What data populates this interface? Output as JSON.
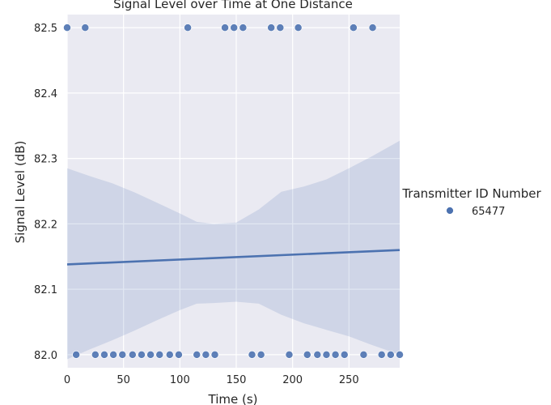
{
  "chart_data": {
    "type": "scatter",
    "title": "Signal Level over Time at One Distance",
    "xlabel": "Time (s)",
    "ylabel": "Signal Level (dB)",
    "xlim": [
      0,
      295
    ],
    "ylim": [
      81.98,
      82.52
    ],
    "xticks": [
      0,
      50,
      100,
      150,
      200,
      250
    ],
    "yticks": [
      82.0,
      82.1,
      82.2,
      82.3,
      82.4,
      82.5
    ],
    "xtick_labels": [
      "0",
      "50",
      "100",
      "150",
      "200",
      "250"
    ],
    "ytick_labels": [
      "82.0",
      "82.1",
      "82.2",
      "82.3",
      "82.4",
      "82.5"
    ],
    "grid": true,
    "legend": {
      "title": "Transmitter ID Number",
      "placement": "right",
      "entries": [
        "65477"
      ]
    },
    "series": [
      {
        "name": "65477",
        "color": "#4c72b0",
        "points": [
          [
            0,
            82.5
          ],
          [
            16,
            82.5
          ],
          [
            107,
            82.5
          ],
          [
            140,
            82.5
          ],
          [
            148,
            82.5
          ],
          [
            156,
            82.5
          ],
          [
            181,
            82.5
          ],
          [
            189,
            82.5
          ],
          [
            205,
            82.5
          ],
          [
            254,
            82.5
          ],
          [
            271,
            82.5
          ],
          [
            8,
            82.0
          ],
          [
            25,
            82.0
          ],
          [
            33,
            82.0
          ],
          [
            41,
            82.0
          ],
          [
            49,
            82.0
          ],
          [
            58,
            82.0
          ],
          [
            66,
            82.0
          ],
          [
            74,
            82.0
          ],
          [
            82,
            82.0
          ],
          [
            91,
            82.0
          ],
          [
            99,
            82.0
          ],
          [
            115,
            82.0
          ],
          [
            123,
            82.0
          ],
          [
            131,
            82.0
          ],
          [
            164,
            82.0
          ],
          [
            172,
            82.0
          ],
          [
            197,
            82.0
          ],
          [
            213,
            82.0
          ],
          [
            222,
            82.0
          ],
          [
            230,
            82.0
          ],
          [
            238,
            82.0
          ],
          [
            246,
            82.0
          ],
          [
            263,
            82.0
          ],
          [
            279,
            82.0
          ],
          [
            287,
            82.0
          ],
          [
            295,
            82.0
          ]
        ],
        "regression": {
          "x": [
            0,
            295
          ],
          "y": [
            82.138,
            82.16
          ]
        },
        "confidence_band": {
          "x": [
            0,
            20,
            40,
            60,
            80,
            100,
            115,
            130,
            150,
            170,
            190,
            210,
            230,
            250,
            270,
            295
          ],
          "upper": [
            82.285,
            82.273,
            82.262,
            82.248,
            82.232,
            82.216,
            82.203,
            82.2,
            82.202,
            82.222,
            82.249,
            82.257,
            82.268,
            82.285,
            82.303,
            82.327
          ],
          "lower": [
            81.993,
            82.008,
            82.022,
            82.037,
            82.053,
            82.068,
            82.078,
            82.079,
            82.081,
            82.078,
            82.061,
            82.048,
            82.038,
            82.028,
            82.015,
            82.0
          ]
        }
      }
    ]
  }
}
